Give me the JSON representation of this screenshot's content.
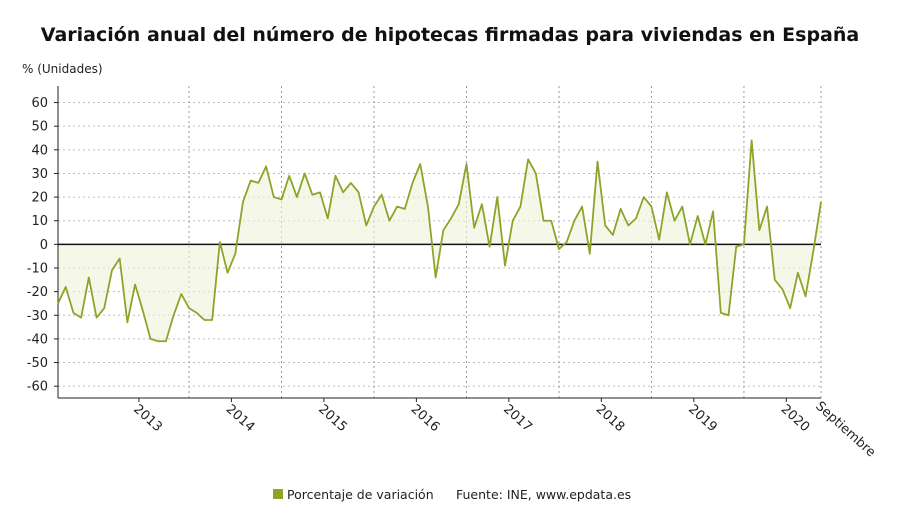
{
  "chart_data": {
    "type": "line",
    "title": "Variación anual del número de hipotecas firmadas para viviendas en España",
    "ylabel": "% (Unidades)",
    "xlabel": "",
    "ylim": [
      -65,
      67
    ],
    "yticks": [
      60,
      50,
      40,
      30,
      20,
      10,
      0,
      -10,
      -20,
      -30,
      -40,
      -50,
      -60
    ],
    "year_labels": [
      "2013",
      "2014",
      "2015",
      "2016",
      "2017",
      "2018",
      "2019",
      "2020"
    ],
    "end_label": "Septiembre",
    "grid": true,
    "legend_position": "bottom",
    "series": [
      {
        "name": "Porcentaje de variación",
        "color": "#8aa52a",
        "values": [
          -25,
          -18,
          -29,
          -31,
          -14,
          -31,
          -27,
          -11,
          -6,
          -33,
          -17,
          -28,
          -40,
          -41,
          -41,
          -30,
          -21,
          -27,
          -29,
          -32,
          -32,
          1,
          -12,
          -4,
          18,
          27,
          26,
          33,
          20,
          19,
          29,
          20,
          30,
          21,
          22,
          11,
          29,
          22,
          26,
          22,
          8,
          16,
          21,
          10,
          16,
          15,
          26,
          34,
          16,
          -14,
          6,
          11,
          17,
          34,
          7,
          17,
          -1,
          20,
          -9,
          10,
          16,
          36,
          30,
          10,
          10,
          -2,
          1,
          10,
          16,
          -4,
          35,
          8,
          4,
          15,
          8,
          11,
          20,
          16,
          2,
          22,
          10,
          16,
          0,
          12,
          0,
          14,
          -29,
          -30,
          -1,
          0,
          44,
          6,
          16,
          -15,
          -19,
          -27,
          -12,
          -22,
          -3,
          18
        ]
      }
    ]
  },
  "legend": {
    "label": "Porcentaje de variación",
    "source": "Fuente: INE, www.epdata.es"
  }
}
